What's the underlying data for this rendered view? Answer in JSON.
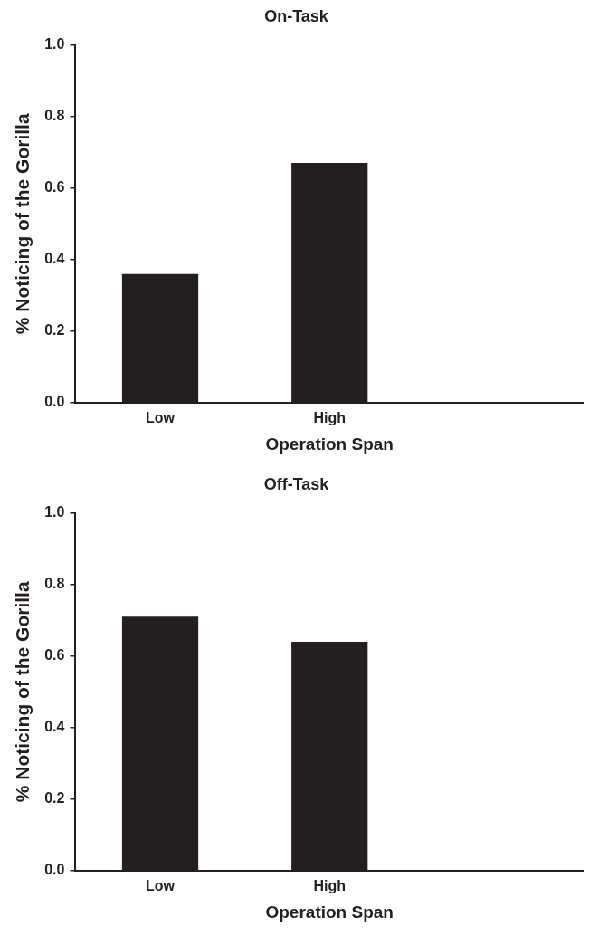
{
  "chart_data": [
    {
      "type": "bar",
      "title": "On-Task",
      "xlabel": "Operation Span",
      "ylabel": "% Noticing of the Gorilla",
      "categories": [
        "Low",
        "High",
        null
      ],
      "values": [
        0.36,
        0.67,
        null
      ],
      "color": "#231f20",
      "ylim": [
        0,
        1
      ],
      "yticks": [
        {
          "value": 0,
          "label": "0.0"
        },
        {
          "value": 0.2,
          "label": "0.2"
        },
        {
          "value": 0.4,
          "label": "0.4"
        },
        {
          "value": 0.6,
          "label": "0.6"
        },
        {
          "value": 0.8,
          "label": "0.8"
        },
        {
          "value": 1,
          "label": "1.0"
        }
      ],
      "grid": false,
      "legend": false
    },
    {
      "type": "bar",
      "title": "Off-Task",
      "xlabel": "Operation Span",
      "ylabel": "% Noticing of the Gorilla",
      "categories": [
        "Low",
        "High",
        null
      ],
      "values": [
        0.71,
        0.64,
        null
      ],
      "color": "#231f20",
      "ylim": [
        0,
        1
      ],
      "yticks": [
        {
          "value": 0,
          "label": "0.0"
        },
        {
          "value": 0.2,
          "label": "0.2"
        },
        {
          "value": 0.4,
          "label": "0.4"
        },
        {
          "value": 0.6,
          "label": "0.6"
        },
        {
          "value": 0.8,
          "label": "0.8"
        },
        {
          "value": 1,
          "label": "1.0"
        }
      ],
      "grid": false,
      "legend": false
    }
  ]
}
